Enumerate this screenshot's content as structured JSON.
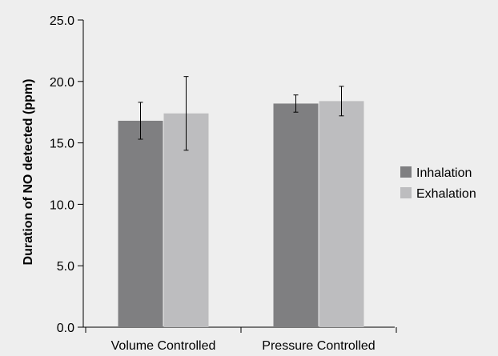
{
  "chart_data": {
    "type": "bar",
    "title": "",
    "xlabel": "",
    "ylabel": "Duration of NO detected (ppm)",
    "categories": [
      "Volume Controlled",
      "Pressure Controlled"
    ],
    "ylim": [
      0,
      25
    ],
    "yticks": [
      "0.0",
      "5.0",
      "10.0",
      "15.0",
      "20.0",
      "25.0"
    ],
    "grid": false,
    "legend_position": "right",
    "series": [
      {
        "name": "Inhalation",
        "color": "#7f7f81",
        "values": [
          16.8,
          18.2
        ],
        "err_low": [
          15.3,
          17.5
        ],
        "err_high": [
          18.3,
          18.9
        ]
      },
      {
        "name": "Exhalation",
        "color": "#bdbdbf",
        "values": [
          17.4,
          18.4
        ],
        "err_low": [
          14.4,
          17.2
        ],
        "err_high": [
          20.4,
          19.6
        ]
      }
    ]
  }
}
